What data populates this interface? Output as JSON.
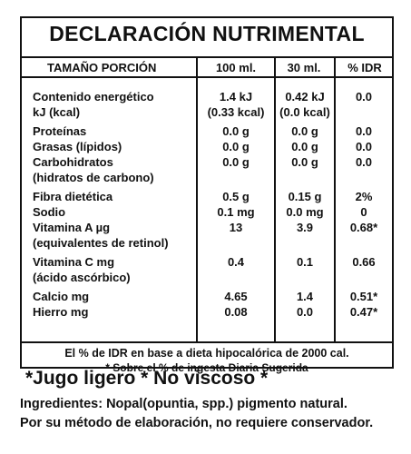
{
  "title": "DECLARACIÓN NUTRIMENTAL",
  "headers": [
    "TAMAÑO PORCIÓN",
    "100 ml.",
    "30 ml.",
    "% IDR"
  ],
  "rows": [
    {
      "label": [
        "Contenido energético",
        "kJ (kcal)"
      ],
      "v100": [
        "1.4 kJ",
        "(0.33 kcal)"
      ],
      "v30": [
        "0.42 kJ",
        "(0.0 kcal)"
      ],
      "idr": [
        "0.0",
        ""
      ]
    },
    {
      "label": [
        "Proteínas"
      ],
      "v100": [
        "0.0 g"
      ],
      "v30": [
        "0.0 g"
      ],
      "idr": [
        "0.0"
      ]
    },
    {
      "label": [
        "Grasas (lípidos)"
      ],
      "v100": [
        "0.0 g"
      ],
      "v30": [
        "0.0 g"
      ],
      "idr": [
        "0.0"
      ]
    },
    {
      "label": [
        "Carbohidratos",
        "(hidratos de carbono)"
      ],
      "v100": [
        "0.0 g",
        ""
      ],
      "v30": [
        "0.0 g",
        ""
      ],
      "idr": [
        "0.0",
        ""
      ]
    },
    {
      "label": [
        "Fibra dietética"
      ],
      "v100": [
        "0.5 g"
      ],
      "v30": [
        "0.15 g"
      ],
      "idr": [
        "2%"
      ]
    },
    {
      "label": [
        "Sodio"
      ],
      "v100": [
        "0.1 mg"
      ],
      "v30": [
        "0.0 mg"
      ],
      "idr": [
        "0"
      ]
    },
    {
      "label": [
        "Vitamina A µg",
        "(equivalentes de retinol)"
      ],
      "v100": [
        "13",
        ""
      ],
      "v30": [
        "3.9",
        ""
      ],
      "idr": [
        "0.68*",
        ""
      ]
    },
    {
      "label": [
        "Vitamina C mg",
        "(ácido ascórbico)"
      ],
      "v100": [
        "0.4",
        ""
      ],
      "v30": [
        "0.1",
        ""
      ],
      "idr": [
        "0.66",
        ""
      ]
    },
    {
      "label": [
        "Calcio mg"
      ],
      "v100": [
        "4.65"
      ],
      "v30": [
        "1.4"
      ],
      "idr": [
        "0.51*"
      ]
    },
    {
      "label": [
        "Hierro mg"
      ],
      "v100": [
        "0.08"
      ],
      "v30": [
        "0.0"
      ],
      "idr": [
        "0.47*"
      ]
    }
  ],
  "footnotes": [
    "El % de IDR en base a dieta hipocalórica de 2000 cal.",
    "* Sobre el % de ingesta Diaria Sugerida"
  ],
  "banner": "*Jugo ligero * No viscoso *",
  "ingredients": [
    "Ingredientes: Nopal(opuntia, spp.) pigmento natural.",
    "Por su método de elaboración, no requiere conservador."
  ]
}
